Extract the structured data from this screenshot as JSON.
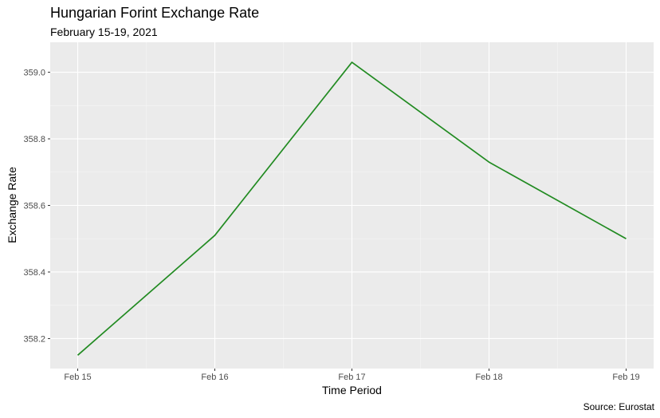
{
  "chart_data": {
    "type": "line",
    "title": "Hungarian Forint Exchange Rate",
    "subtitle": "February 15-19, 2021",
    "xlabel": "Time Period",
    "ylabel": "Exchange Rate",
    "caption": "Source: Eurostat",
    "categories": [
      "Feb 15",
      "Feb 16",
      "Feb 17",
      "Feb 18",
      "Feb 19"
    ],
    "series": [
      {
        "values": [
          358.15,
          358.51,
          359.03,
          358.73,
          358.5
        ],
        "color": "#228B22"
      }
    ],
    "ylim": [
      358.11,
      359.09
    ],
    "yticks": [
      358.2,
      358.4,
      358.6,
      358.8,
      359.0
    ],
    "ytick_labels": [
      "358.2",
      "358.4",
      "358.6",
      "358.8",
      "359.0"
    ],
    "grid": true,
    "panel_background": "#EBEBEB"
  }
}
